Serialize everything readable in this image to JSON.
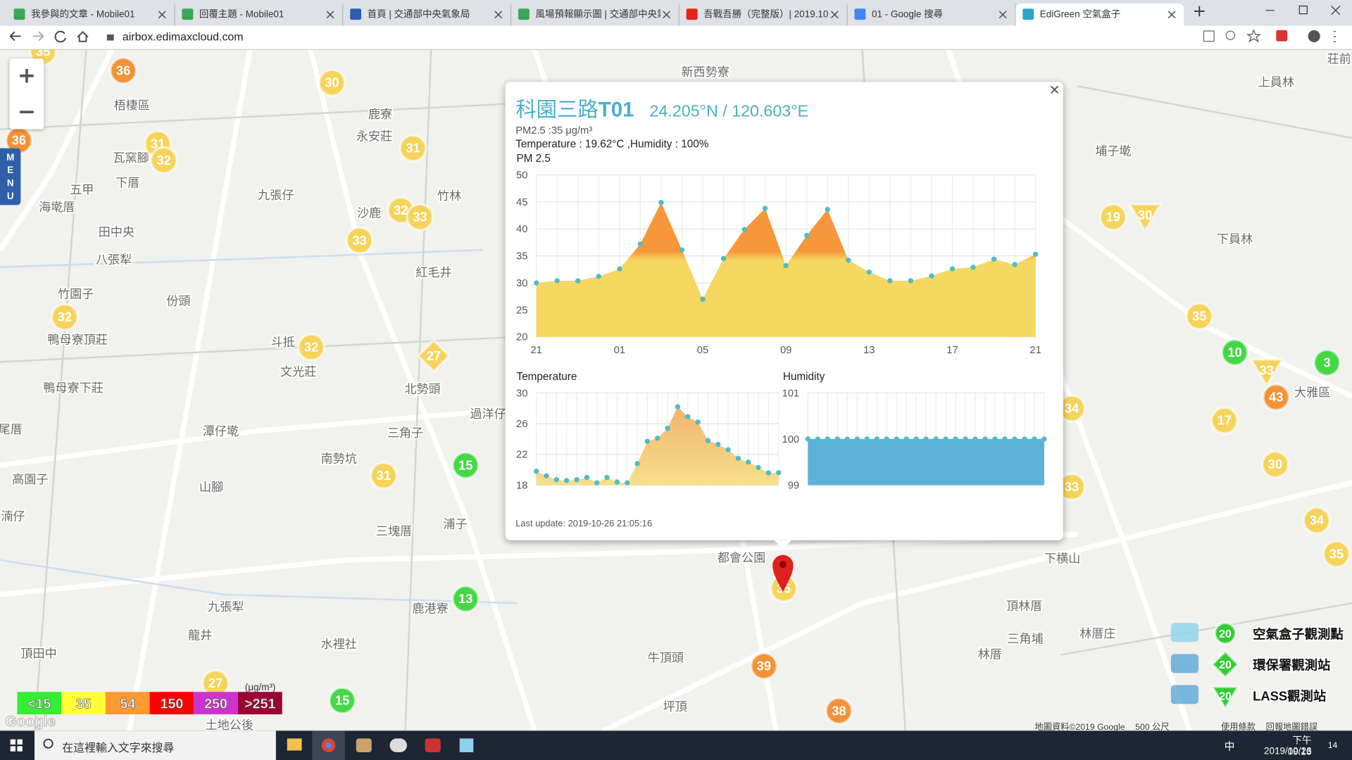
{
  "browser": {
    "tabs": [
      "我參與的文章 - Mobile01",
      "回覆主題 - Mobile01",
      "首頁 | 交通部中央氣象局",
      "風場預報顯示圖 | 交通部中央氣象",
      "吾戰吾勝（完整版）| 2019.10.2",
      "01 - Google 搜尋",
      "EdiGreen 空氣盒子"
    ],
    "address": "airbox.edimaxcloud.com"
  },
  "map": {
    "menu": [
      "M",
      "E",
      "N",
      "U"
    ],
    "places": [
      "梧棲區",
      "瓦窯腳",
      "下厝",
      "五甲",
      "海墘厝",
      "九張仔",
      "田中央",
      "八張犁",
      "竹園子",
      "份頭",
      "鴨母寮頂莊",
      "鴨母寮下莊",
      "斗抵",
      "文光莊",
      "潭仔墘",
      "高園子",
      "山腳",
      "南勢坑",
      "三角子",
      "北勢頭",
      "過洋仔",
      "三塊厝",
      "浦子",
      "九張犁",
      "龍井",
      "鹿港寮",
      "水裡社",
      "頂田中",
      "土地公後",
      "牛頂頭",
      "坪頂",
      "鹿寮",
      "永安莊",
      "沙鹿",
      "竹林",
      "紅毛井",
      "新西勢寮",
      "埔子墘",
      "上員林",
      "下員林",
      "大雅區",
      "頂林厝",
      "林厝庄",
      "三角埔",
      "林厝",
      "下横山",
      "都會公園",
      "荘前",
      "湳仔",
      "尾厝"
    ],
    "markers": [
      {
        "value": 36,
        "color": "#f39237"
      },
      {
        "value": 30,
        "color": "#f6d35a"
      },
      {
        "value": 36,
        "color": "#f39237"
      },
      {
        "value": 31,
        "color": "#f6d35a"
      },
      {
        "value": 32,
        "color": "#f6d35a"
      },
      {
        "value": 31,
        "color": "#f6d35a"
      },
      {
        "value": 32,
        "color": "#f6d35a"
      },
      {
        "value": 33,
        "color": "#f6d35a"
      },
      {
        "value": 33,
        "color": "#f6d35a"
      },
      {
        "value": 32,
        "color": "#f6d35a"
      },
      {
        "value": 32,
        "color": "#f6d35a"
      },
      {
        "value": 27,
        "color": "#f6d35a",
        "shape": "diamond"
      },
      {
        "value": 15,
        "color": "#44d844"
      },
      {
        "value": 31,
        "color": "#f6d35a"
      },
      {
        "value": 13,
        "color": "#44d844"
      },
      {
        "value": 27,
        "color": "#f6d35a"
      },
      {
        "value": 15,
        "color": "#44d844"
      },
      {
        "value": 35,
        "color": "#f6d35a"
      },
      {
        "value": 39,
        "color": "#f39237"
      },
      {
        "value": 38,
        "color": "#f39237"
      },
      {
        "value": 19,
        "color": "#f6d35a"
      },
      {
        "value": 30,
        "color": "#f6d35a",
        "shape": "triangle"
      },
      {
        "value": 35,
        "color": "#f6d35a"
      },
      {
        "value": 10,
        "color": "#44d844"
      },
      {
        "value": 3,
        "color": "#44d844"
      },
      {
        "value": 33,
        "color": "#f6d35a",
        "shape": "triangle"
      },
      {
        "value": 43,
        "color": "#f39237"
      },
      {
        "value": 17,
        "color": "#f6d35a"
      },
      {
        "value": 30,
        "color": "#f6d35a"
      },
      {
        "value": 34,
        "color": "#f6d35a"
      },
      {
        "value": 33,
        "color": "#f6d35a"
      },
      {
        "value": 34,
        "color": "#f6d35a"
      },
      {
        "value": 35,
        "color": "#f6d35a"
      },
      {
        "value": 35,
        "color": "#f6d35a"
      }
    ],
    "scale_legend": {
      "unit": "(μg/m³)",
      "levels": [
        {
          "label": "<15",
          "color": "#33ee33"
        },
        {
          "label": "35",
          "color": "#ffff33"
        },
        {
          "label": "54",
          "color": "#ff9933"
        },
        {
          "label": "150",
          "color": "#ff0000"
        },
        {
          "label": "250",
          "color": "#cc33cc"
        },
        {
          "label": ">251",
          "color": "#990033"
        }
      ]
    },
    "station_legend": [
      {
        "value": 20,
        "label": "空氣盒子觀測點",
        "shape": "circle"
      },
      {
        "value": 20,
        "label": "環保署觀測站",
        "shape": "diamond"
      },
      {
        "value": 20,
        "label": "LASS觀測站",
        "shape": "triangle"
      }
    ],
    "logo": "Google",
    "footer": [
      "地圖資料©2019 Google",
      "500 公尺",
      "使用條款",
      "回報地圖錯誤"
    ]
  },
  "popup": {
    "name": "科園三路",
    "id": "T01",
    "coords": "24.205°N / 120.603°E",
    "pm25": "PM2.5 :35 μg/m³",
    "weather": "Temperature : 19.62°C ,Humidity : 100%",
    "last_update": "Last update: 2019-10-26 21:05:16"
  },
  "chart_data": [
    {
      "type": "area",
      "title": "PM 2.5",
      "categories": [
        "21",
        null,
        null,
        null,
        "01",
        null,
        null,
        null,
        "05",
        null,
        null,
        null,
        "09",
        null,
        null,
        null,
        "13",
        null,
        null,
        null,
        "17",
        null,
        null,
        null,
        "21"
      ],
      "values": [
        30.0,
        30.4,
        30.4,
        31.2,
        32.6,
        37.2,
        44.9,
        36.1,
        27.0,
        34.5,
        39.9,
        43.8,
        33.2,
        38.8,
        43.6,
        34.2,
        32.0,
        30.4,
        30.4,
        31.3,
        32.6,
        32.9,
        34.4,
        33.4,
        35.3
      ],
      "ylim": [
        20,
        50
      ],
      "yticks": [
        20,
        25,
        30,
        35,
        40,
        45,
        50
      ],
      "color": "#f5d862",
      "high_color": "#f7963b",
      "high_from": 35,
      "point_color": "#4fbcc6",
      "grid": true
    },
    {
      "type": "area",
      "title": "Temperature",
      "values": [
        19.8,
        19.2,
        18.7,
        18.6,
        18.7,
        19.0,
        18.3,
        19.0,
        18.4,
        18.3,
        20.8,
        23.7,
        24.1,
        25.4,
        28.2,
        26.9,
        26.2,
        23.8,
        23.3,
        22.6,
        21.5,
        21.0,
        20.3,
        19.6,
        19.62
      ],
      "ylim": [
        18,
        30
      ],
      "yticks": [
        18,
        22,
        26,
        30
      ],
      "color": "#f7e08c",
      "high_color": "#f0ac68",
      "point_color": "#4fbcc6",
      "grid": true
    },
    {
      "type": "area",
      "title": "Humidity",
      "values": [
        100,
        100,
        100,
        100,
        100,
        100,
        100,
        100,
        100,
        100,
        100,
        100,
        100,
        100,
        100,
        100,
        100,
        100,
        100,
        100,
        100,
        100,
        100,
        100,
        100
      ],
      "ylim": [
        99,
        101
      ],
      "yticks": [
        99,
        100,
        101
      ],
      "color": "#5cb2d9",
      "point_color": "#4fbcc6",
      "grid": true
    }
  ],
  "taskbar": {
    "search": "在這裡輸入文字來搜尋",
    "ime": "中",
    "time": "下午 09:13",
    "date": "2019/10/26",
    "notifications": "14"
  }
}
